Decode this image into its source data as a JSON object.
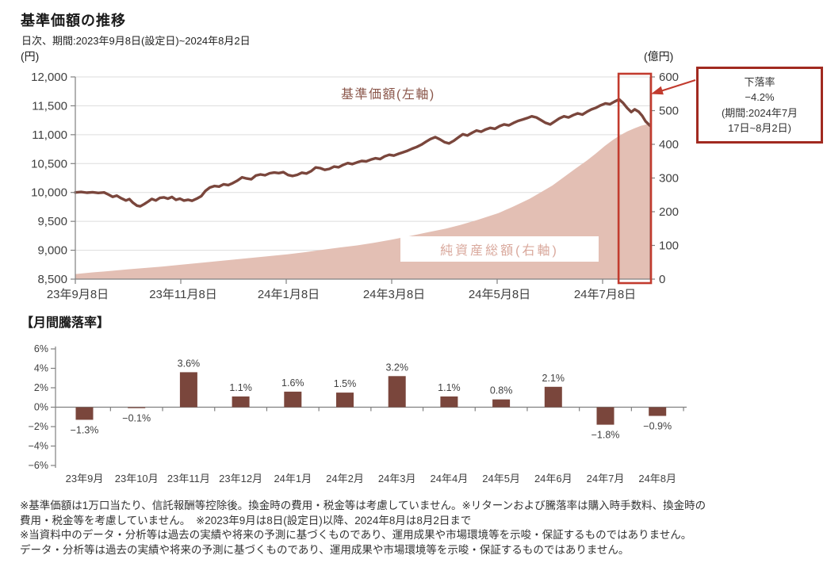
{
  "chart_data": [
    {
      "type": "line+area",
      "title": "基準価額の推移",
      "subtitle": "日次、期間:2023年9月8日(設定日)~2024年8月2日",
      "left_axis": {
        "unit": "(円)",
        "min": 8500,
        "max": 12000,
        "tick_values": [
          12000,
          11500,
          11000,
          10500,
          10000,
          9500,
          9000,
          8500
        ],
        "tick_labels": [
          "12,000",
          "11,500",
          "11,000",
          "10,500",
          "10,000",
          "9,500",
          "9,000",
          "8,500"
        ]
      },
      "right_axis": {
        "unit": "(億円)",
        "min": 0,
        "max": 600,
        "tick_values": [
          600,
          500,
          400,
          300,
          200,
          100,
          0
        ],
        "tick_labels": [
          "600",
          "500",
          "400",
          "300",
          "200",
          "100",
          "0"
        ]
      },
      "x_tick_labels": [
        "23年9月8日",
        "23年11月8日",
        "24年1月8日",
        "24年3月8日",
        "24年5月8日",
        "24年7月8日"
      ],
      "grid": true,
      "series": [
        {
          "name": "基準価額(左軸)",
          "axis": "left",
          "type": "line",
          "color": "#7A463C",
          "points": [
            [
              0,
              10000
            ],
            [
              0.01,
              10008
            ],
            [
              0.02,
              9996
            ],
            [
              0.03,
              10004
            ],
            [
              0.04,
              9992
            ],
            [
              0.05,
              10000
            ],
            [
              0.058,
              9962
            ],
            [
              0.065,
              9925
            ],
            [
              0.072,
              9945
            ],
            [
              0.08,
              9898
            ],
            [
              0.088,
              9862
            ],
            [
              0.094,
              9885
            ],
            [
              0.1,
              9825
            ],
            [
              0.107,
              9772
            ],
            [
              0.113,
              9760
            ],
            [
              0.12,
              9800
            ],
            [
              0.127,
              9845
            ],
            [
              0.133,
              9888
            ],
            [
              0.14,
              9862
            ],
            [
              0.147,
              9905
            ],
            [
              0.154,
              9915
            ],
            [
              0.161,
              9893
            ],
            [
              0.168,
              9922
            ],
            [
              0.175,
              9872
            ],
            [
              0.182,
              9893
            ],
            [
              0.189,
              9860
            ],
            [
              0.196,
              9874
            ],
            [
              0.203,
              9856
            ],
            [
              0.211,
              9892
            ],
            [
              0.219,
              9935
            ],
            [
              0.226,
              10025
            ],
            [
              0.234,
              10085
            ],
            [
              0.242,
              10112
            ],
            [
              0.25,
              10102
            ],
            [
              0.258,
              10142
            ],
            [
              0.266,
              10128
            ],
            [
              0.274,
              10162
            ],
            [
              0.282,
              10205
            ],
            [
              0.29,
              10262
            ],
            [
              0.298,
              10242
            ],
            [
              0.306,
              10228
            ],
            [
              0.314,
              10292
            ],
            [
              0.322,
              10312
            ],
            [
              0.33,
              10298
            ],
            [
              0.338,
              10332
            ],
            [
              0.346,
              10345
            ],
            [
              0.354,
              10335
            ],
            [
              0.362,
              10352
            ],
            [
              0.37,
              10302
            ],
            [
              0.378,
              10286
            ],
            [
              0.386,
              10305
            ],
            [
              0.394,
              10342
            ],
            [
              0.402,
              10328
            ],
            [
              0.41,
              10368
            ],
            [
              0.418,
              10432
            ],
            [
              0.426,
              10422
            ],
            [
              0.434,
              10392
            ],
            [
              0.442,
              10408
            ],
            [
              0.45,
              10448
            ],
            [
              0.458,
              10436
            ],
            [
              0.466,
              10478
            ],
            [
              0.474,
              10508
            ],
            [
              0.482,
              10492
            ],
            [
              0.49,
              10520
            ],
            [
              0.498,
              10545
            ],
            [
              0.506,
              10538
            ],
            [
              0.514,
              10568
            ],
            [
              0.522,
              10592
            ],
            [
              0.53,
              10578
            ],
            [
              0.538,
              10625
            ],
            [
              0.546,
              10652
            ],
            [
              0.554,
              10638
            ],
            [
              0.562,
              10668
            ],
            [
              0.57,
              10695
            ],
            [
              0.578,
              10722
            ],
            [
              0.586,
              10758
            ],
            [
              0.594,
              10788
            ],
            [
              0.602,
              10828
            ],
            [
              0.61,
              10878
            ],
            [
              0.618,
              10925
            ],
            [
              0.626,
              10958
            ],
            [
              0.634,
              10920
            ],
            [
              0.642,
              10872
            ],
            [
              0.65,
              10848
            ],
            [
              0.658,
              10892
            ],
            [
              0.666,
              10952
            ],
            [
              0.674,
              11008
            ],
            [
              0.682,
              10986
            ],
            [
              0.69,
              11032
            ],
            [
              0.698,
              11072
            ],
            [
              0.706,
              11052
            ],
            [
              0.714,
              11092
            ],
            [
              0.722,
              11118
            ],
            [
              0.73,
              11102
            ],
            [
              0.738,
              11148
            ],
            [
              0.746,
              11178
            ],
            [
              0.754,
              11162
            ],
            [
              0.762,
              11202
            ],
            [
              0.77,
              11238
            ],
            [
              0.778,
              11262
            ],
            [
              0.786,
              11288
            ],
            [
              0.794,
              11318
            ],
            [
              0.802,
              11298
            ],
            [
              0.81,
              11252
            ],
            [
              0.818,
              11205
            ],
            [
              0.826,
              11178
            ],
            [
              0.834,
              11228
            ],
            [
              0.842,
              11282
            ],
            [
              0.85,
              11318
            ],
            [
              0.858,
              11298
            ],
            [
              0.866,
              11338
            ],
            [
              0.874,
              11368
            ],
            [
              0.882,
              11348
            ],
            [
              0.89,
              11398
            ],
            [
              0.898,
              11438
            ],
            [
              0.906,
              11468
            ],
            [
              0.914,
              11508
            ],
            [
              0.922,
              11542
            ],
            [
              0.93,
              11528
            ],
            [
              0.938,
              11572
            ],
            [
              0.946,
              11612
            ],
            [
              0.953,
              11548
            ],
            [
              0.96,
              11462
            ],
            [
              0.967,
              11392
            ],
            [
              0.973,
              11438
            ],
            [
              0.98,
              11398
            ],
            [
              0.986,
              11328
            ],
            [
              0.992,
              11232
            ],
            [
              1,
              11155
            ]
          ]
        },
        {
          "name": "純資産総額(右軸)",
          "axis": "right",
          "type": "area",
          "color": "#E3BFB4",
          "points": [
            [
              0,
              15
            ],
            [
              0.03,
              20
            ],
            [
              0.06,
              24
            ],
            [
              0.09,
              29
            ],
            [
              0.12,
              33
            ],
            [
              0.15,
              37
            ],
            [
              0.185,
              43
            ],
            [
              0.21,
              47
            ],
            [
              0.24,
              52
            ],
            [
              0.27,
              57
            ],
            [
              0.3,
              62
            ],
            [
              0.33,
              67
            ],
            [
              0.37,
              74
            ],
            [
              0.4,
              80
            ],
            [
              0.43,
              87
            ],
            [
              0.46,
              94
            ],
            [
              0.49,
              100
            ],
            [
              0.52,
              108
            ],
            [
              0.55,
              117
            ],
            [
              0.58,
              127
            ],
            [
              0.61,
              138
            ],
            [
              0.645,
              150
            ],
            [
              0.67,
              161
            ],
            [
              0.7,
              176
            ],
            [
              0.736,
              196
            ],
            [
              0.76,
              214
            ],
            [
              0.79,
              238
            ],
            [
              0.81,
              258
            ],
            [
              0.83,
              278
            ],
            [
              0.85,
              303
            ],
            [
              0.87,
              328
            ],
            [
              0.89,
              352
            ],
            [
              0.905,
              372
            ],
            [
              0.921,
              395
            ],
            [
              0.935,
              413
            ],
            [
              0.948,
              427
            ],
            [
              0.96,
              438
            ],
            [
              0.972,
              447
            ],
            [
              0.984,
              455
            ],
            [
              1,
              462
            ]
          ]
        }
      ],
      "highlight": {
        "t_start": 0.945,
        "t_end": 1.0,
        "color": "#C23B2E"
      },
      "annotation": {
        "lines": [
          "下落率",
          "−4.2%",
          "(期間:2024年7月",
          "17日~8月2日)"
        ],
        "border_color": "#A12A20"
      }
    },
    {
      "type": "bar",
      "title": "【月間騰落率】",
      "categories": [
        "23年9月",
        "23年10月",
        "23年11月",
        "23年12月",
        "24年1月",
        "24年2月",
        "24年3月",
        "24年4月",
        "24年5月",
        "24年6月",
        "24年7月",
        "24年8月"
      ],
      "values": [
        -1.3,
        -0.1,
        3.6,
        1.1,
        1.6,
        1.5,
        3.2,
        1.1,
        0.8,
        2.1,
        -1.8,
        -0.9
      ],
      "value_labels": [
        "−1.3%",
        "−0.1%",
        "3.6%",
        "1.1%",
        "1.6%",
        "1.5%",
        "3.2%",
        "1.1%",
        "0.8%",
        "2.1%",
        "−1.8%",
        "−0.9%"
      ],
      "bar_color": "#7A463C",
      "ylim": [
        -6,
        6
      ],
      "y_tick_values": [
        6,
        4,
        2,
        0,
        -2,
        -4,
        -6
      ],
      "y_tick_labels": [
        "6%",
        "4%",
        "2%",
        "0%",
        "−2%",
        "−4%",
        "−6%"
      ]
    }
  ],
  "notes": [
    "※基準価額は1万口当たり、信託報酬等控除後。換金時の費用・税金等は考慮していません。※リターンおよび騰落率は購入時手数料、換金時の",
    "費用・税金等を考慮していません。　※2023年9月は8日(設定日)以降、2024年8月は8月2日まで",
    "※当資料中のデータ・分析等は過去の実績や将来の予測に基づくものであり、運用成果や市場環境等を示唆・保証するものではありません。",
    "データ・分析等は過去の実績や将来の予測に基づくものであり、運用成果や市場環境等を示唆・保証するものではありません。"
  ]
}
